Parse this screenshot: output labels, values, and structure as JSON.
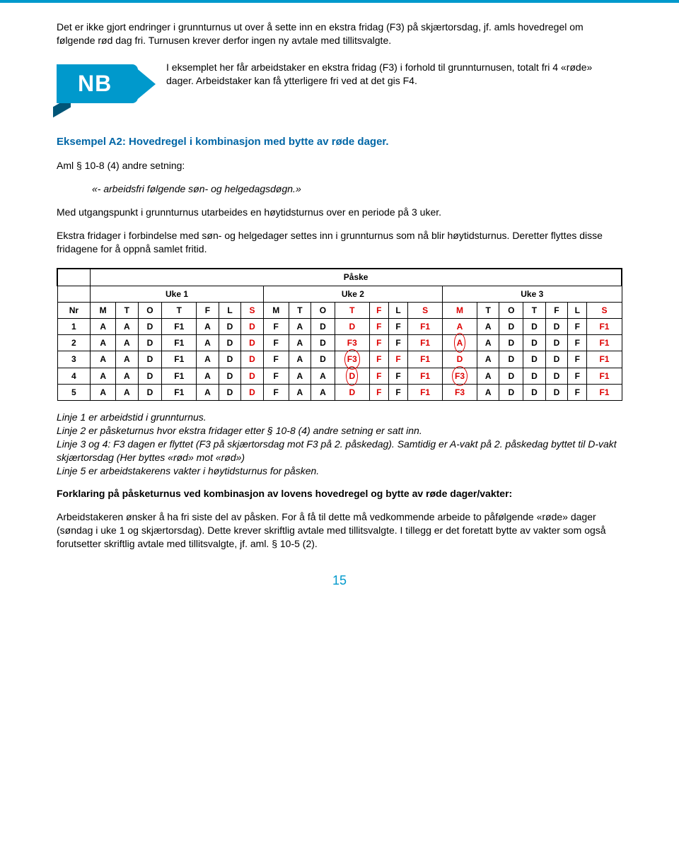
{
  "para1": "Det er ikke gjort endringer i grunnturnus ut over å sette inn en ekstra fridag (F3) på skjærtorsdag, jf. amls hovedregel om følgende rød dag fri. Turnusen krever derfor ingen ny avtale med tillitsvalgte.",
  "nb_label": "NB",
  "nb_text": "I eksemplet her får arbeidstaker en ekstra fridag (F3) i forhold til grunnturnusen, totalt fri 4 «røde» dager. Arbeidstaker kan få ytterligere fri ved at det gis F4.",
  "heading": "Eksempel A2: Hovedregel i kombinasjon med bytte av røde dager.",
  "aml_label": "Aml § 10-8 (4) andre setning:",
  "quote": "«- arbeidsfri følgende søn- og helgedagsdøgn.»",
  "para2": "Med utgangspunkt i grunnturnus utarbeides en høytidsturnus over en periode på 3 uker.",
  "para3": "Ekstra fridager i forbindelse med søn- og helgedager settes inn i grunnturnus som nå blir høytidsturnus. Deretter flyttes disse fridagene for å oppnå samlet fritid.",
  "table": {
    "title": "Påske",
    "weeks": [
      "Uke 1",
      "Uke 2",
      "Uke 3"
    ],
    "header": [
      {
        "t": "Nr",
        "r": false
      },
      {
        "t": "M",
        "r": false
      },
      {
        "t": "T",
        "r": false
      },
      {
        "t": "O",
        "r": false
      },
      {
        "t": "T",
        "r": false
      },
      {
        "t": "F",
        "r": false
      },
      {
        "t": "L",
        "r": false
      },
      {
        "t": "S",
        "r": true
      },
      {
        "t": "M",
        "r": false
      },
      {
        "t": "T",
        "r": false
      },
      {
        "t": "O",
        "r": false
      },
      {
        "t": "T",
        "r": true
      },
      {
        "t": "F",
        "r": true
      },
      {
        "t": "L",
        "r": false
      },
      {
        "t": "S",
        "r": true
      },
      {
        "t": "M",
        "r": true
      },
      {
        "t": "T",
        "r": false
      },
      {
        "t": "O",
        "r": false
      },
      {
        "t": "T",
        "r": false
      },
      {
        "t": "F",
        "r": false
      },
      {
        "t": "L",
        "r": false
      },
      {
        "t": "S",
        "r": true
      }
    ],
    "rows": [
      [
        {
          "t": "1",
          "r": false
        },
        {
          "t": "A",
          "r": false
        },
        {
          "t": "A",
          "r": false
        },
        {
          "t": "D",
          "r": false
        },
        {
          "t": "F1",
          "r": false
        },
        {
          "t": "A",
          "r": false
        },
        {
          "t": "D",
          "r": false
        },
        {
          "t": "D",
          "r": true
        },
        {
          "t": "F",
          "r": false
        },
        {
          "t": "A",
          "r": false
        },
        {
          "t": "D",
          "r": false
        },
        {
          "t": "D",
          "r": true
        },
        {
          "t": "F",
          "r": true
        },
        {
          "t": "F",
          "r": false
        },
        {
          "t": "F1",
          "r": true
        },
        {
          "t": "A",
          "r": true
        },
        {
          "t": "A",
          "r": false
        },
        {
          "t": "D",
          "r": false
        },
        {
          "t": "D",
          "r": false
        },
        {
          "t": "D",
          "r": false
        },
        {
          "t": "F",
          "r": false
        },
        {
          "t": "F1",
          "r": true
        }
      ],
      [
        {
          "t": "2",
          "r": false
        },
        {
          "t": "A",
          "r": false
        },
        {
          "t": "A",
          "r": false
        },
        {
          "t": "D",
          "r": false
        },
        {
          "t": "F1",
          "r": false
        },
        {
          "t": "A",
          "r": false
        },
        {
          "t": "D",
          "r": false
        },
        {
          "t": "D",
          "r": true
        },
        {
          "t": "F",
          "r": false
        },
        {
          "t": "A",
          "r": false
        },
        {
          "t": "D",
          "r": false
        },
        {
          "t": "F3",
          "r": true
        },
        {
          "t": "F",
          "r": true
        },
        {
          "t": "F",
          "r": false
        },
        {
          "t": "F1",
          "r": true
        },
        {
          "t": "A",
          "r": true,
          "c": true
        },
        {
          "t": "A",
          "r": false
        },
        {
          "t": "D",
          "r": false
        },
        {
          "t": "D",
          "r": false
        },
        {
          "t": "D",
          "r": false
        },
        {
          "t": "F",
          "r": false
        },
        {
          "t": "F1",
          "r": true
        }
      ],
      [
        {
          "t": "3",
          "r": false
        },
        {
          "t": "A",
          "r": false
        },
        {
          "t": "A",
          "r": false
        },
        {
          "t": "D",
          "r": false
        },
        {
          "t": "F1",
          "r": false
        },
        {
          "t": "A",
          "r": false
        },
        {
          "t": "D",
          "r": false
        },
        {
          "t": "D",
          "r": true
        },
        {
          "t": "F",
          "r": false
        },
        {
          "t": "A",
          "r": false
        },
        {
          "t": "D",
          "r": false
        },
        {
          "t": "F3",
          "r": true,
          "c": true
        },
        {
          "t": "F",
          "r": true
        },
        {
          "t": "F",
          "r": true
        },
        {
          "t": "F1",
          "r": true
        },
        {
          "t": "D",
          "r": true
        },
        {
          "t": "A",
          "r": false
        },
        {
          "t": "D",
          "r": false
        },
        {
          "t": "D",
          "r": false
        },
        {
          "t": "D",
          "r": false
        },
        {
          "t": "F",
          "r": false
        },
        {
          "t": "F1",
          "r": true
        }
      ],
      [
        {
          "t": "4",
          "r": false
        },
        {
          "t": "A",
          "r": false
        },
        {
          "t": "A",
          "r": false
        },
        {
          "t": "D",
          "r": false
        },
        {
          "t": "F1",
          "r": false
        },
        {
          "t": "A",
          "r": false
        },
        {
          "t": "D",
          "r": false
        },
        {
          "t": "D",
          "r": true
        },
        {
          "t": "F",
          "r": false
        },
        {
          "t": "A",
          "r": false
        },
        {
          "t": "A",
          "r": false
        },
        {
          "t": "D",
          "r": true,
          "c": true
        },
        {
          "t": "F",
          "r": true
        },
        {
          "t": "F",
          "r": false
        },
        {
          "t": "F1",
          "r": true
        },
        {
          "t": "F3",
          "r": true,
          "c": true
        },
        {
          "t": "A",
          "r": false
        },
        {
          "t": "D",
          "r": false
        },
        {
          "t": "D",
          "r": false
        },
        {
          "t": "D",
          "r": false
        },
        {
          "t": "F",
          "r": false
        },
        {
          "t": "F1",
          "r": true
        }
      ],
      [
        {
          "t": "5",
          "r": false
        },
        {
          "t": "A",
          "r": false
        },
        {
          "t": "A",
          "r": false
        },
        {
          "t": "D",
          "r": false
        },
        {
          "t": "F1",
          "r": false
        },
        {
          "t": "A",
          "r": false
        },
        {
          "t": "D",
          "r": false
        },
        {
          "t": "D",
          "r": true
        },
        {
          "t": "F",
          "r": false
        },
        {
          "t": "A",
          "r": false
        },
        {
          "t": "A",
          "r": false
        },
        {
          "t": "D",
          "r": true
        },
        {
          "t": "F",
          "r": true
        },
        {
          "t": "F",
          "r": false
        },
        {
          "t": "F1",
          "r": true
        },
        {
          "t": "F3",
          "r": true
        },
        {
          "t": "A",
          "r": false
        },
        {
          "t": "D",
          "r": false
        },
        {
          "t": "D",
          "r": false
        },
        {
          "t": "D",
          "r": false
        },
        {
          "t": "F",
          "r": false
        },
        {
          "t": "F1",
          "r": true
        }
      ]
    ]
  },
  "caption_lines": [
    "Linje 1 er arbeidstid i grunnturnus.",
    "Linje 2 er påsketurnus hvor ekstra fridager etter § 10-8 (4) andre setning er satt inn.",
    "Linje 3 og 4: F3 dagen er flyttet (F3 på skjærtorsdag mot F3 på 2. påskedag). Samtidig er A-vakt på 2. påskedag byttet til D-vakt skjærtorsdag (Her byttes «rød» mot «rød»)",
    "Linje 5 er arbeidstakerens vakter i høytidsturnus for påsken."
  ],
  "subheading": "Forklaring på påsketurnus ved kombinasjon av lovens hovedregel og bytte av røde dager/vakter:",
  "para4": "Arbeidstakeren ønsker å ha fri siste del av påsken. For å få til dette må vedkommende arbeide to påfølgende «røde» dager (søndag i uke 1 og skjærtorsdag). Dette krever skriftlig avtale med tillitsvalgte. I tillegg er det foretatt bytte av vakter som også forutsetter skriftlig avtale med tillitsvalgte, jf. aml. § 10-5 (2).",
  "page": "15"
}
